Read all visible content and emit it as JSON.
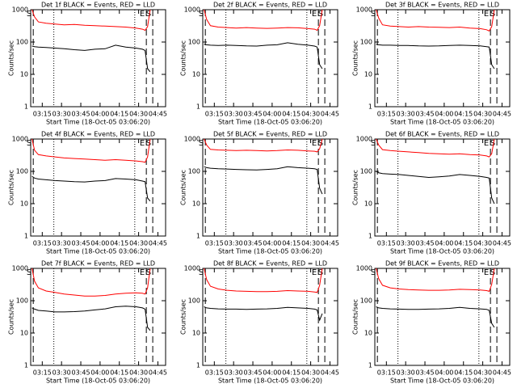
{
  "chart_data": [
    {
      "type": "line",
      "title": "Det 1f BLACK = Events, RED = LLD",
      "xlabel": "Start Time (18-Oct-05 03:06:20)",
      "ylabel": "Counts/sec",
      "log_y": true,
      "x": [
        7,
        9,
        12,
        18,
        25,
        32,
        40,
        48,
        56,
        64,
        72,
        80,
        88,
        93,
        95,
        97,
        99
      ],
      "series": [
        {
          "color": "#000000",
          "values": [
            75,
            72,
            70,
            68,
            65,
            62,
            58,
            55,
            60,
            62,
            80,
            70,
            65,
            60,
            55,
            15,
            12
          ]
        },
        {
          "color": "#ff0000",
          "values": [
            1000,
            600,
            420,
            380,
            360,
            340,
            350,
            330,
            320,
            310,
            300,
            290,
            270,
            250,
            230,
            300,
            1000
          ]
        }
      ],
      "xlim": [
        6,
        111
      ],
      "ylim": [
        1,
        1000
      ],
      "yticks": [
        1,
        10,
        100,
        1000
      ],
      "xticks": [
        {
          "value": 15,
          "label": "03:15"
        },
        {
          "value": 30,
          "label": "03:30"
        },
        {
          "value": 45,
          "label": "03:45"
        },
        {
          "value": 60,
          "label": "04:00"
        },
        {
          "value": 75,
          "label": "04:15"
        },
        {
          "value": 90,
          "label": "04:30"
        },
        {
          "value": 105,
          "label": "04:45"
        }
      ],
      "markers": [
        {
          "label": "S",
          "x": 8
        },
        {
          "label": "E",
          "x": 96
        },
        {
          "label": "S",
          "x": 101
        }
      ],
      "dotted_lines": [
        24,
        87
      ]
    },
    {
      "type": "line",
      "title": "Det 2f BLACK = Events, RED = LLD",
      "xlabel": "Start Time (18-Oct-05 03:06:20)",
      "ylabel": "Counts/sec",
      "log_y": true,
      "x": [
        7,
        9,
        12,
        18,
        25,
        32,
        40,
        48,
        56,
        64,
        72,
        80,
        88,
        93,
        95,
        97,
        99
      ],
      "series": [
        {
          "color": "#000000",
          "values": [
            85,
            82,
            80,
            78,
            80,
            78,
            76,
            75,
            80,
            82,
            95,
            85,
            80,
            75,
            70,
            20,
            15
          ]
        },
        {
          "color": "#ff0000",
          "values": [
            1000,
            500,
            320,
            290,
            280,
            270,
            280,
            270,
            265,
            270,
            280,
            275,
            260,
            250,
            230,
            320,
            1000
          ]
        }
      ],
      "xlim": [
        6,
        111
      ],
      "ylim": [
        1,
        1000
      ],
      "yticks": [
        1,
        10,
        100,
        1000
      ],
      "xticks": [
        {
          "value": 15,
          "label": "03:15"
        },
        {
          "value": 30,
          "label": "03:30"
        },
        {
          "value": 45,
          "label": "03:45"
        },
        {
          "value": 60,
          "label": "04:00"
        },
        {
          "value": 75,
          "label": "04:15"
        },
        {
          "value": 90,
          "label": "04:30"
        },
        {
          "value": 105,
          "label": "04:45"
        }
      ],
      "markers": [
        {
          "label": "S",
          "x": 8
        },
        {
          "label": "E",
          "x": 96
        },
        {
          "label": "S",
          "x": 101
        }
      ],
      "dotted_lines": [
        24,
        87
      ]
    },
    {
      "type": "line",
      "title": "Det 3f BLACK = Events, RED = LLD",
      "xlabel": "Start Time (18-Oct-05 03:06:20)",
      "ylabel": "Counts/sec",
      "log_y": true,
      "x": [
        7,
        9,
        12,
        18,
        25,
        32,
        40,
        48,
        56,
        64,
        72,
        80,
        88,
        93,
        95,
        97,
        99
      ],
      "series": [
        {
          "color": "#000000",
          "values": [
            85,
            82,
            80,
            80,
            78,
            78,
            76,
            75,
            76,
            78,
            80,
            78,
            76,
            72,
            70,
            20,
            15
          ]
        },
        {
          "color": "#ff0000",
          "values": [
            1000,
            550,
            340,
            310,
            300,
            290,
            300,
            290,
            285,
            280,
            290,
            270,
            260,
            240,
            220,
            300,
            1000
          ]
        }
      ],
      "xlim": [
        6,
        111
      ],
      "ylim": [
        1,
        1000
      ],
      "yticks": [
        1,
        10,
        100,
        1000
      ],
      "xticks": [
        {
          "value": 15,
          "label": "03:15"
        },
        {
          "value": 30,
          "label": "03:30"
        },
        {
          "value": 45,
          "label": "03:45"
        },
        {
          "value": 60,
          "label": "04:00"
        },
        {
          "value": 75,
          "label": "04:15"
        },
        {
          "value": 90,
          "label": "04:30"
        },
        {
          "value": 105,
          "label": "04:45"
        }
      ],
      "markers": [
        {
          "label": "S",
          "x": 8
        },
        {
          "label": "E",
          "x": 96
        },
        {
          "label": "S",
          "x": 101
        }
      ],
      "dotted_lines": [
        24,
        87
      ]
    },
    {
      "type": "line",
      "title": "Det 4f BLACK = Events, RED = LLD",
      "xlabel": "Start Time (18-Oct-05 03:06:20)",
      "ylabel": "Counts/sec",
      "log_y": true,
      "x": [
        7,
        9,
        12,
        18,
        25,
        32,
        40,
        48,
        56,
        64,
        72,
        80,
        88,
        93,
        95,
        97,
        99
      ],
      "series": [
        {
          "color": "#000000",
          "values": [
            70,
            62,
            58,
            55,
            52,
            50,
            48,
            47,
            50,
            52,
            60,
            58,
            55,
            50,
            48,
            15,
            12
          ]
        },
        {
          "color": "#ff0000",
          "values": [
            1000,
            450,
            330,
            300,
            280,
            260,
            250,
            240,
            230,
            220,
            230,
            220,
            210,
            200,
            190,
            280,
            1000
          ]
        }
      ],
      "xlim": [
        6,
        111
      ],
      "ylim": [
        1,
        1000
      ],
      "yticks": [
        1,
        10,
        100,
        1000
      ],
      "xticks": [
        {
          "value": 15,
          "label": "03:15"
        },
        {
          "value": 30,
          "label": "03:30"
        },
        {
          "value": 45,
          "label": "03:45"
        },
        {
          "value": 60,
          "label": "04:00"
        },
        {
          "value": 75,
          "label": "04:15"
        },
        {
          "value": 90,
          "label": "04:30"
        },
        {
          "value": 105,
          "label": "04:45"
        }
      ],
      "markers": [
        {
          "label": "S",
          "x": 8
        },
        {
          "label": "E",
          "x": 96
        },
        {
          "label": "S",
          "x": 101
        }
      ],
      "dotted_lines": [
        24,
        87
      ]
    },
    {
      "type": "line",
      "title": "Det 5f BLACK = Events, RED = LLD",
      "xlabel": "Start Time (18-Oct-05 03:06:20)",
      "ylabel": "Counts/sec",
      "log_y": true,
      "x": [
        7,
        9,
        12,
        18,
        25,
        32,
        40,
        48,
        56,
        64,
        72,
        80,
        88,
        93,
        95,
        97,
        99
      ],
      "series": [
        {
          "color": "#000000",
          "values": [
            140,
            130,
            125,
            120,
            118,
            115,
            112,
            110,
            115,
            120,
            140,
            130,
            125,
            120,
            115,
            30,
            20
          ]
        },
        {
          "color": "#ff0000",
          "values": [
            1000,
            650,
            480,
            460,
            450,
            440,
            450,
            440,
            430,
            440,
            460,
            450,
            430,
            420,
            400,
            500,
            1000
          ]
        }
      ],
      "xlim": [
        6,
        111
      ],
      "ylim": [
        1,
        1000
      ],
      "yticks": [
        1,
        10,
        100,
        1000
      ],
      "xticks": [
        {
          "value": 15,
          "label": "03:15"
        },
        {
          "value": 30,
          "label": "03:30"
        },
        {
          "value": 45,
          "label": "03:45"
        },
        {
          "value": 60,
          "label": "04:00"
        },
        {
          "value": 75,
          "label": "04:15"
        },
        {
          "value": 90,
          "label": "04:30"
        },
        {
          "value": 105,
          "label": "04:45"
        }
      ],
      "markers": [
        {
          "label": "S",
          "x": 8
        },
        {
          "label": "E",
          "x": 96
        },
        {
          "label": "S",
          "x": 101
        }
      ],
      "dotted_lines": [
        24,
        87
      ]
    },
    {
      "type": "line",
      "title": "Det 6f BLACK = Events, RED = LLD",
      "xlabel": "Start Time (18-Oct-05 03:06:20)",
      "ylabel": "Counts/sec",
      "log_y": true,
      "x": [
        7,
        9,
        12,
        18,
        25,
        32,
        40,
        48,
        56,
        64,
        72,
        80,
        88,
        93,
        95,
        97,
        99
      ],
      "series": [
        {
          "color": "#000000",
          "values": [
            100,
            90,
            85,
            82,
            80,
            75,
            70,
            65,
            68,
            72,
            80,
            75,
            70,
            65,
            62,
            15,
            10
          ]
        },
        {
          "color": "#ff0000",
          "values": [
            1000,
            650,
            470,
            440,
            420,
            400,
            380,
            360,
            350,
            340,
            350,
            330,
            320,
            300,
            280,
            350,
            1000
          ]
        }
      ],
      "xlim": [
        6,
        111
      ],
      "ylim": [
        1,
        1000
      ],
      "yticks": [
        1,
        10,
        100,
        1000
      ],
      "xticks": [
        {
          "value": 15,
          "label": "03:15"
        },
        {
          "value": 30,
          "label": "03:30"
        },
        {
          "value": 45,
          "label": "03:45"
        },
        {
          "value": 60,
          "label": "04:00"
        },
        {
          "value": 75,
          "label": "04:15"
        },
        {
          "value": 90,
          "label": "04:30"
        },
        {
          "value": 105,
          "label": "04:45"
        }
      ],
      "markers": [
        {
          "label": "S",
          "x": 8
        },
        {
          "label": "E",
          "x": 96
        },
        {
          "label": "S",
          "x": 101
        }
      ],
      "dotted_lines": [
        24,
        87
      ]
    },
    {
      "type": "line",
      "title": "Det 7f BLACK = Events, RED = LLD",
      "xlabel": "Start Time (18-Oct-05 03:06:20)",
      "ylabel": "Counts/sec",
      "log_y": true,
      "x": [
        7,
        9,
        12,
        18,
        25,
        32,
        40,
        48,
        56,
        64,
        72,
        80,
        88,
        93,
        95,
        97,
        99
      ],
      "series": [
        {
          "color": "#000000",
          "values": [
            60,
            55,
            50,
            48,
            45,
            45,
            46,
            48,
            52,
            56,
            65,
            68,
            65,
            60,
            55,
            15,
            12
          ]
        },
        {
          "color": "#ff0000",
          "values": [
            1000,
            400,
            250,
            200,
            180,
            160,
            150,
            140,
            140,
            145,
            160,
            170,
            175,
            170,
            160,
            250,
            1000
          ]
        }
      ],
      "xlim": [
        6,
        111
      ],
      "ylim": [
        1,
        1000
      ],
      "yticks": [
        1,
        10,
        100,
        1000
      ],
      "xticks": [
        {
          "value": 15,
          "label": "03:15"
        },
        {
          "value": 30,
          "label": "03:30"
        },
        {
          "value": 45,
          "label": "03:45"
        },
        {
          "value": 60,
          "label": "04:00"
        },
        {
          "value": 75,
          "label": "04:15"
        },
        {
          "value": 90,
          "label": "04:30"
        },
        {
          "value": 105,
          "label": "04:45"
        }
      ],
      "markers": [
        {
          "label": "S",
          "x": 8
        },
        {
          "label": "E",
          "x": 96
        },
        {
          "label": "S",
          "x": 101
        }
      ],
      "dotted_lines": [
        24,
        87
      ]
    },
    {
      "type": "line",
      "title": "Det 8f BLACK = Events, RED = LLD",
      "xlabel": "Start Time (18-Oct-05 03:06:20)",
      "ylabel": "Counts/sec",
      "log_y": true,
      "x": [
        7,
        9,
        12,
        18,
        25,
        32,
        40,
        48,
        56,
        64,
        72,
        80,
        88,
        93,
        95,
        97,
        99
      ],
      "series": [
        {
          "color": "#000000",
          "values": [
            65,
            60,
            58,
            56,
            55,
            55,
            54,
            55,
            56,
            58,
            62,
            60,
            58,
            55,
            52,
            25,
            40
          ]
        },
        {
          "color": "#ff0000",
          "values": [
            1000,
            450,
            280,
            230,
            210,
            200,
            195,
            190,
            190,
            195,
            205,
            200,
            195,
            185,
            180,
            300,
            1000
          ]
        }
      ],
      "xlim": [
        6,
        111
      ],
      "ylim": [
        1,
        1000
      ],
      "yticks": [
        1,
        10,
        100,
        1000
      ],
      "xticks": [
        {
          "value": 15,
          "label": "03:15"
        },
        {
          "value": 30,
          "label": "03:30"
        },
        {
          "value": 45,
          "label": "03:45"
        },
        {
          "value": 60,
          "label": "04:00"
        },
        {
          "value": 75,
          "label": "04:15"
        },
        {
          "value": 90,
          "label": "04:30"
        },
        {
          "value": 105,
          "label": "04:45"
        }
      ],
      "markers": [
        {
          "label": "S",
          "x": 8
        },
        {
          "label": "E",
          "x": 96
        },
        {
          "label": "S",
          "x": 101
        }
      ],
      "dotted_lines": [
        24,
        87
      ]
    },
    {
      "type": "line",
      "title": "Det 9f BLACK = Events, RED = LLD",
      "xlabel": "Start Time (18-Oct-05 03:06:20)",
      "ylabel": "Counts/sec",
      "log_y": true,
      "x": [
        7,
        9,
        12,
        18,
        25,
        32,
        40,
        48,
        56,
        64,
        72,
        80,
        88,
        93,
        95,
        97,
        99
      ],
      "series": [
        {
          "color": "#000000",
          "values": [
            65,
            60,
            58,
            56,
            55,
            54,
            54,
            55,
            56,
            58,
            62,
            58,
            56,
            54,
            50,
            20,
            15
          ]
        },
        {
          "color": "#ff0000",
          "values": [
            1000,
            480,
            300,
            250,
            230,
            220,
            215,
            210,
            210,
            215,
            225,
            220,
            215,
            205,
            195,
            320,
            1000
          ]
        }
      ],
      "xlim": [
        6,
        111
      ],
      "ylim": [
        1,
        1000
      ],
      "yticks": [
        1,
        10,
        100,
        1000
      ],
      "xticks": [
        {
          "value": 15,
          "label": "03:15"
        },
        {
          "value": 30,
          "label": "03:30"
        },
        {
          "value": 45,
          "label": "03:45"
        },
        {
          "value": 60,
          "label": "04:00"
        },
        {
          "value": 75,
          "label": "04:15"
        },
        {
          "value": 90,
          "label": "04:30"
        },
        {
          "value": 105,
          "label": "04:45"
        }
      ],
      "markers": [
        {
          "label": "S",
          "x": 8
        },
        {
          "label": "E",
          "x": 96
        },
        {
          "label": "S",
          "x": 101
        }
      ],
      "dotted_lines": [
        24,
        87
      ]
    }
  ]
}
